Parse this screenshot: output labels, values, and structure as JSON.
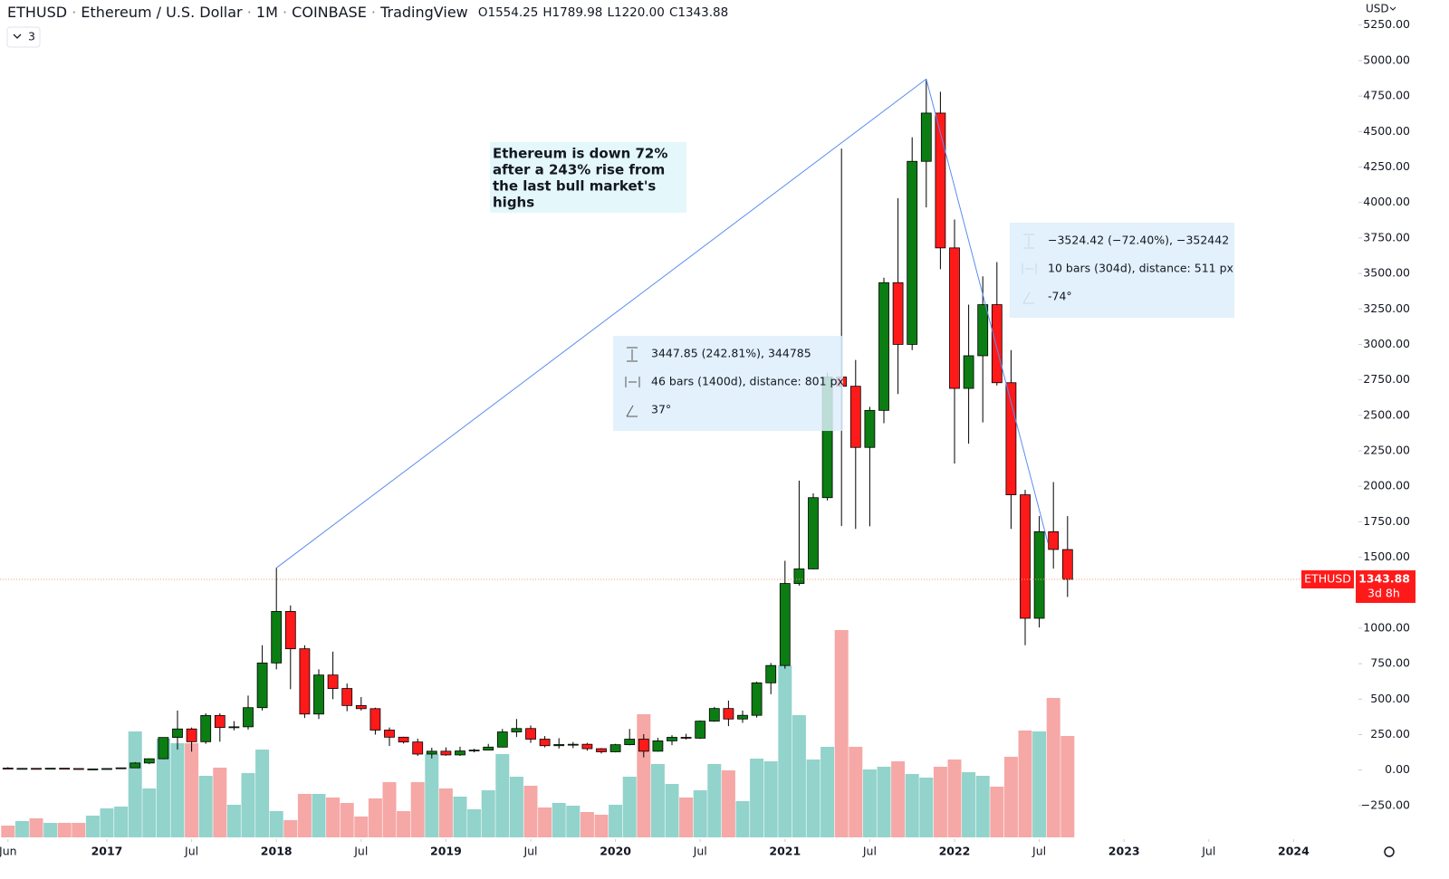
{
  "header": {
    "symbol": "ETHUSD",
    "separator": "·",
    "description": "Ethereum / U.S. Dollar",
    "interval": "1M",
    "exchange": "COINBASE",
    "source": "TradingView",
    "ohlc": [
      "O1554.25",
      "H1789.98",
      "L1220.00",
      "C1343.88"
    ],
    "indicator_count": "3",
    "currency": "USD"
  },
  "price_label": {
    "symbol": "ETHUSD",
    "price": "1343.88",
    "countdown": "3d 8h"
  },
  "note": [
    "Ethereum is down 72%",
    "after a 243% rise from",
    "the last bull market's",
    "highs"
  ],
  "measure_up": [
    "3447.85 (242.81%), 344785",
    "46 bars (1400d), distance: 801 px",
    "37°"
  ],
  "measure_down": [
    "−3524.42 (−72.40%), −352442",
    "10 bars (304d), distance: 511 px",
    "-74°"
  ],
  "chart_data": {
    "type": "candlestick",
    "x": [
      "2016-06",
      "2016-07",
      "2016-08",
      "2016-09",
      "2016-10",
      "2016-11",
      "2016-12",
      "2017-01",
      "2017-02",
      "2017-03",
      "2017-04",
      "2017-05",
      "2017-06",
      "2017-07",
      "2017-08",
      "2017-09",
      "2017-10",
      "2017-11",
      "2017-12",
      "2018-01",
      "2018-02",
      "2018-03",
      "2018-04",
      "2018-05",
      "2018-06",
      "2018-07",
      "2018-08",
      "2018-09",
      "2018-10",
      "2018-11",
      "2018-12",
      "2019-01",
      "2019-02",
      "2019-03",
      "2019-04",
      "2019-05",
      "2019-06",
      "2019-07",
      "2019-08",
      "2019-09",
      "2019-10",
      "2019-11",
      "2019-12",
      "2020-01",
      "2020-02",
      "2020-03",
      "2020-04",
      "2020-05",
      "2020-06",
      "2020-07",
      "2020-08",
      "2020-09",
      "2020-10",
      "2020-11",
      "2020-12",
      "2021-01",
      "2021-02",
      "2021-03",
      "2021-04",
      "2021-05",
      "2021-06",
      "2021-07",
      "2021-08",
      "2021-09",
      "2021-10",
      "2021-11",
      "2021-12",
      "2022-01",
      "2022-02",
      "2022-03",
      "2022-04",
      "2022-05",
      "2022-06",
      "2022-07",
      "2022-08",
      "2022-09"
    ],
    "open": [
      14,
      12,
      12,
      11,
      13,
      11,
      8,
      8,
      11,
      16,
      50,
      80,
      230,
      290,
      200,
      385,
      300,
      305,
      440,
      755,
      1118,
      855,
      395,
      670,
      575,
      455,
      433,
      282,
      232,
      198,
      113,
      133,
      107,
      135,
      141,
      162,
      269,
      293,
      218,
      172,
      180,
      182,
      151,
      129,
      179,
      218,
      133,
      206,
      231,
      225,
      345,
      434,
      360,
      386,
      615,
      737,
      1315,
      1418,
      1920,
      2770,
      2705,
      2274,
      2535,
      3435,
      3000,
      4290,
      4630,
      3680,
      2690,
      2920,
      3280,
      2730,
      1940,
      1070,
      1680,
      1554.25
    ],
    "high": [
      21,
      14,
      12,
      14,
      14,
      11,
      9,
      12,
      17,
      56,
      82,
      230,
      420,
      300,
      400,
      400,
      345,
      525,
      880,
      1425,
      1160,
      880,
      710,
      835,
      610,
      515,
      440,
      300,
      235,
      222,
      158,
      160,
      165,
      150,
      185,
      290,
      360,
      315,
      240,
      225,
      198,
      192,
      155,
      185,
      290,
      253,
      227,
      246,
      256,
      350,
      445,
      490,
      420,
      623,
      755,
      1475,
      2040,
      1950,
      2800,
      4380,
      2890,
      2560,
      3470,
      4030,
      4460,
      4870,
      4780,
      3880,
      3280,
      3480,
      3580,
      2960,
      1975,
      1790,
      2030,
      1789.98
    ],
    "low": [
      11,
      10,
      10,
      11,
      10,
      8,
      6,
      8,
      10,
      16,
      42,
      77,
      145,
      130,
      185,
      200,
      280,
      285,
      420,
      710,
      570,
      367,
      360,
      500,
      415,
      420,
      250,
      170,
      187,
      100,
      82,
      101,
      100,
      125,
      140,
      160,
      233,
      192,
      160,
      152,
      155,
      137,
      117,
      125,
      175,
      90,
      130,
      176,
      215,
      220,
      340,
      310,
      333,
      370,
      535,
      715,
      1300,
      1415,
      1900,
      1720,
      1700,
      1718,
      2445,
      2650,
      2960,
      3965,
      3530,
      2160,
      2300,
      2450,
      2710,
      1700,
      880,
      1005,
      1420,
      1220
    ],
    "close": [
      12,
      12,
      11,
      13,
      11,
      8,
      8,
      11,
      16,
      50,
      80,
      230,
      290,
      200,
      385,
      300,
      305,
      440,
      755,
      1118,
      855,
      395,
      670,
      575,
      455,
      433,
      282,
      232,
      198,
      113,
      133,
      107,
      135,
      141,
      162,
      269,
      293,
      218,
      172,
      180,
      182,
      151,
      129,
      179,
      218,
      133,
      206,
      231,
      225,
      345,
      434,
      360,
      386,
      615,
      737,
      1315,
      1418,
      1920,
      2770,
      2705,
      2274,
      2535,
      3435,
      3000,
      4290,
      4630,
      3680,
      2690,
      2920,
      3280,
      2730,
      1940,
      1070,
      1680,
      1555,
      1343.88
    ],
    "volume": [
      13,
      18,
      21,
      16,
      16,
      16,
      24,
      32,
      34,
      117,
      54,
      109,
      104,
      104,
      68,
      77,
      36,
      71,
      97,
      29,
      19,
      48,
      48,
      44,
      38,
      23,
      43,
      61,
      29,
      61,
      92,
      54,
      45,
      31,
      52,
      92,
      67,
      57,
      33,
      38,
      35,
      28,
      25,
      36,
      67,
      136,
      81,
      59,
      44,
      52,
      81,
      74,
      40,
      87,
      84,
      190,
      135,
      86,
      100,
      229,
      100,
      75,
      78,
      84,
      70,
      66,
      78,
      86,
      72,
      68,
      56,
      89,
      118,
      117,
      154,
      112
    ],
    "up_color": "#0b7d13",
    "down_color": "#ff1a1a",
    "volume_up_color": "#92d3cc",
    "volume_down_color": "#f5a8a6",
    "line_color": "#5b8def",
    "xlim": [
      "2016-06",
      "2024-04"
    ],
    "xticks": [
      {
        "value": "2016-06",
        "label": "Jun"
      },
      {
        "value": "2017-01",
        "label": "2017"
      },
      {
        "value": "2017-07",
        "label": "Jul"
      },
      {
        "value": "2018-01",
        "label": "2018"
      },
      {
        "value": "2018-07",
        "label": "Jul"
      },
      {
        "value": "2019-01",
        "label": "2019"
      },
      {
        "value": "2019-07",
        "label": "Jul"
      },
      {
        "value": "2020-01",
        "label": "2020"
      },
      {
        "value": "2020-07",
        "label": "Jul"
      },
      {
        "value": "2021-01",
        "label": "2021"
      },
      {
        "value": "2021-07",
        "label": "Jul"
      },
      {
        "value": "2022-01",
        "label": "2022"
      },
      {
        "value": "2022-07",
        "label": "Jul"
      },
      {
        "value": "2023-01",
        "label": "2023"
      },
      {
        "value": "2023-07",
        "label": "Jul"
      },
      {
        "value": "2024-01",
        "label": "2024"
      }
    ],
    "ylim": [
      -474,
      5427
    ],
    "yticks": [
      {
        "value": -250,
        "label": "−250.00"
      },
      {
        "value": 0,
        "label": "0.00"
      },
      {
        "value": 250,
        "label": "250.00"
      },
      {
        "value": 500,
        "label": "500.00"
      },
      {
        "value": 750,
        "label": "750.00"
      },
      {
        "value": 1000,
        "label": "1000.00"
      },
      {
        "value": 1250,
        "label": "1250.00"
      },
      {
        "value": 1500,
        "label": "1500.00"
      },
      {
        "value": 1750,
        "label": "1750.00"
      },
      {
        "value": 2000,
        "label": "2000.00"
      },
      {
        "value": 2250,
        "label": "2250.00"
      },
      {
        "value": 2500,
        "label": "2500.00"
      },
      {
        "value": 2750,
        "label": "2750.00"
      },
      {
        "value": 3000,
        "label": "3000.00"
      },
      {
        "value": 3250,
        "label": "3250.00"
      },
      {
        "value": 3500,
        "label": "3500.00"
      },
      {
        "value": 3750,
        "label": "3750.00"
      },
      {
        "value": 4000,
        "label": "4000.00"
      },
      {
        "value": 4250,
        "label": "4250.00"
      },
      {
        "value": 4500,
        "label": "4500.00"
      },
      {
        "value": 4750,
        "label": "4750.00"
      },
      {
        "value": 5000,
        "label": "5000.00"
      },
      {
        "value": 5250,
        "label": "5250.00"
      }
    ]
  }
}
